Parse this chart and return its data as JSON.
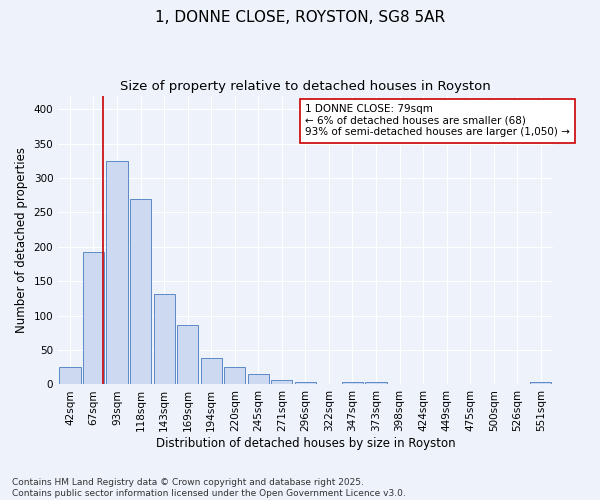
{
  "title": "1, DONNE CLOSE, ROYSTON, SG8 5AR",
  "subtitle": "Size of property relative to detached houses in Royston",
  "xlabel": "Distribution of detached houses by size in Royston",
  "ylabel": "Number of detached properties",
  "bar_labels": [
    "42sqm",
    "67sqm",
    "93sqm",
    "118sqm",
    "143sqm",
    "169sqm",
    "194sqm",
    "220sqm",
    "245sqm",
    "271sqm",
    "296sqm",
    "322sqm",
    "347sqm",
    "373sqm",
    "398sqm",
    "424sqm",
    "449sqm",
    "475sqm",
    "500sqm",
    "526sqm",
    "551sqm"
  ],
  "bar_values": [
    25,
    193,
    325,
    270,
    131,
    87,
    39,
    25,
    15,
    7,
    4,
    0,
    4,
    3,
    0,
    1,
    0,
    0,
    0,
    0,
    3
  ],
  "bar_color": "#ccd9f0",
  "bar_edge_color": "#5b8ac5",
  "vline_x": 1.42,
  "vline_color": "#cc0000",
  "annotation_text": "1 DONNE CLOSE: 79sqm\n← 6% of detached houses are smaller (68)\n93% of semi-detached houses are larger (1,050) →",
  "annotation_box_color": "#ffffff",
  "annotation_box_edge": "#cc0000",
  "ylim": [
    0,
    420
  ],
  "yticks": [
    0,
    50,
    100,
    150,
    200,
    250,
    300,
    350,
    400
  ],
  "footer": "Contains HM Land Registry data © Crown copyright and database right 2025.\nContains public sector information licensed under the Open Government Licence v3.0.",
  "bg_color": "#eef2fb",
  "plot_bg_color": "#eef2fb",
  "grid_color": "#ffffff",
  "title_fontsize": 11,
  "subtitle_fontsize": 9.5,
  "xlabel_fontsize": 8.5,
  "ylabel_fontsize": 8.5,
  "footer_fontsize": 6.5,
  "tick_fontsize": 7.5,
  "annot_fontsize": 7.5
}
